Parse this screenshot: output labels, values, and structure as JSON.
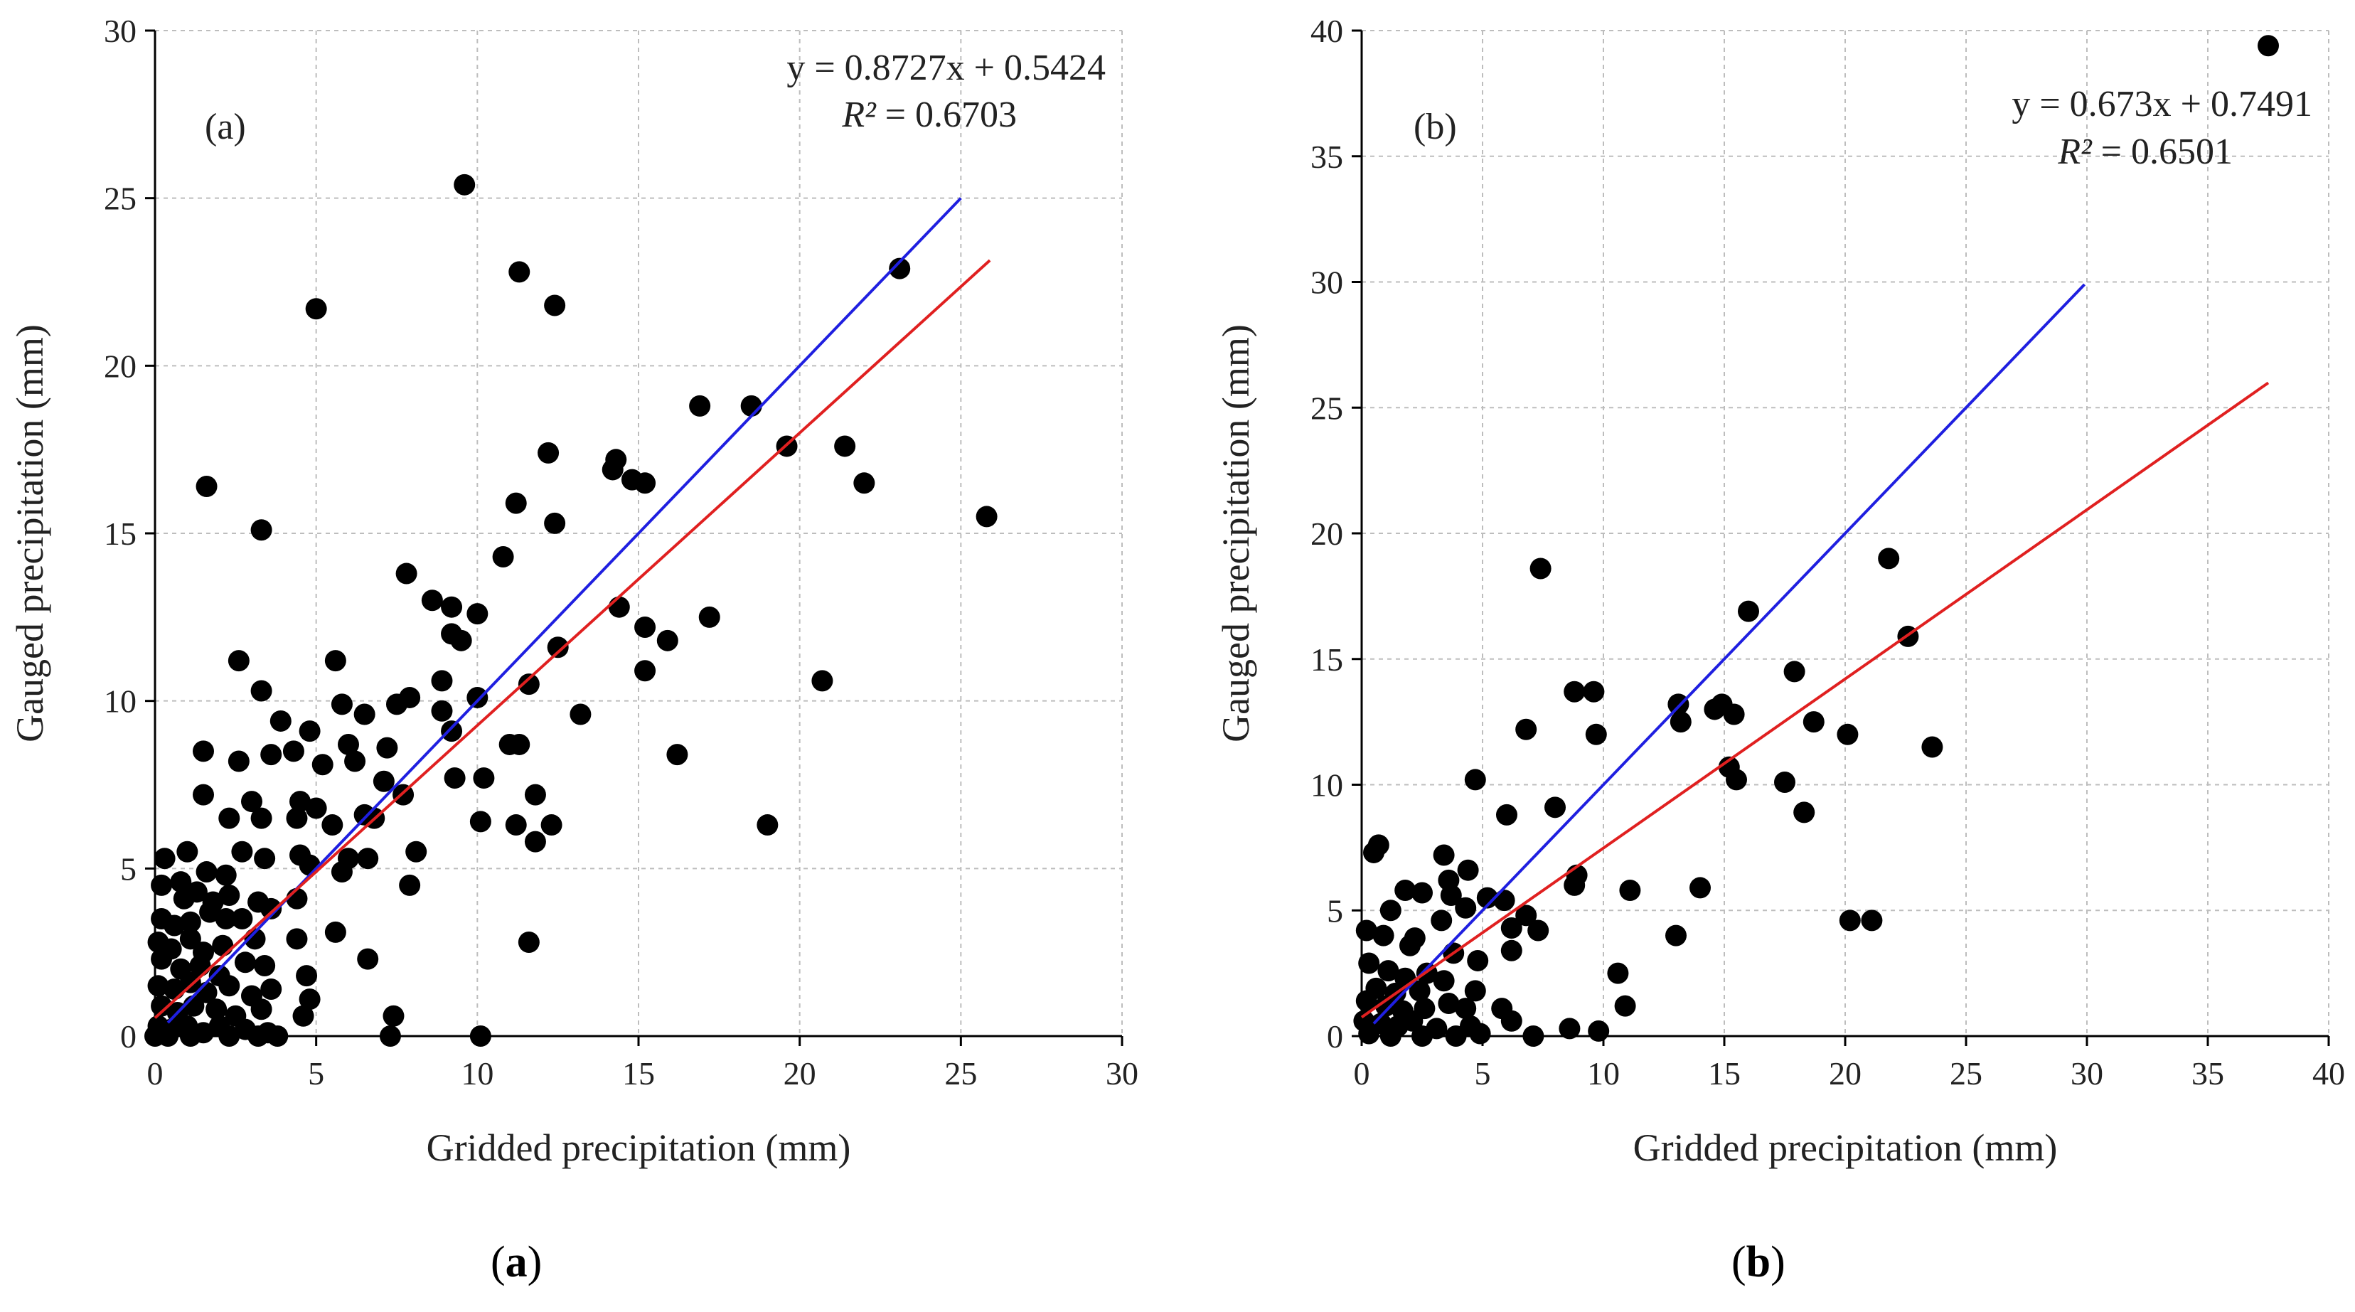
{
  "chart_data": [
    {
      "type": "scatter",
      "panel_label": "(a)",
      "caption": {
        "open": "(",
        "letter": "a",
        "close": ")"
      },
      "xlabel": "Gridded precipitation (mm)",
      "ylabel": "Gauged precipitation (mm)",
      "xlim": [
        0,
        30
      ],
      "ylim": [
        0,
        30
      ],
      "xticks": [
        0,
        5,
        10,
        15,
        20,
        25,
        30
      ],
      "yticks": [
        0,
        5,
        10,
        15,
        20,
        25,
        30
      ],
      "grid": true,
      "equation": "y = 0.8727x + 0.5424",
      "r2_label": "R²",
      "r2_value": "= 0.6703",
      "colors": {
        "one_to_one": "#1f1fe0",
        "regression": "#e02020",
        "points": "#000000"
      },
      "one_to_one_line": {
        "from": [
          0.4,
          0.4
        ],
        "to": [
          25,
          25
        ]
      },
      "regression": {
        "slope": 0.8727,
        "intercept": 0.5424,
        "x_range": [
          0,
          25.9
        ]
      },
      "points": [
        [
          9.6,
          25.4
        ],
        [
          11.3,
          22.8
        ],
        [
          5.0,
          21.7
        ],
        [
          12.4,
          21.8
        ],
        [
          23.1,
          22.9
        ],
        [
          1.6,
          16.4
        ],
        [
          3.3,
          15.1
        ],
        [
          16.9,
          18.8
        ],
        [
          18.5,
          18.8
        ],
        [
          19.6,
          17.6
        ],
        [
          21.4,
          17.6
        ],
        [
          22.0,
          16.5
        ],
        [
          25.8,
          15.5
        ],
        [
          12.2,
          17.4
        ],
        [
          14.3,
          17.2
        ],
        [
          14.2,
          16.9
        ],
        [
          14.8,
          16.6
        ],
        [
          15.2,
          16.5
        ],
        [
          11.2,
          15.9
        ],
        [
          12.4,
          15.3
        ],
        [
          10.8,
          14.3
        ],
        [
          7.8,
          13.8
        ],
        [
          8.6,
          13.0
        ],
        [
          9.2,
          12.8
        ],
        [
          10.0,
          12.6
        ],
        [
          14.4,
          12.8
        ],
        [
          17.2,
          12.5
        ],
        [
          15.2,
          12.2
        ],
        [
          15.9,
          11.8
        ],
        [
          9.2,
          12.0
        ],
        [
          9.5,
          11.8
        ],
        [
          12.5,
          11.6
        ],
        [
          2.6,
          11.2
        ],
        [
          5.6,
          11.2
        ],
        [
          8.9,
          10.6
        ],
        [
          10.0,
          10.1
        ],
        [
          11.6,
          10.5
        ],
        [
          13.2,
          9.6
        ],
        [
          15.2,
          10.9
        ],
        [
          20.7,
          10.6
        ],
        [
          3.3,
          10.3
        ],
        [
          5.8,
          9.9
        ],
        [
          7.5,
          9.9
        ],
        [
          7.9,
          10.1
        ],
        [
          8.9,
          9.7
        ],
        [
          6.5,
          9.6
        ],
        [
          3.9,
          9.4
        ],
        [
          4.8,
          9.1
        ],
        [
          9.2,
          9.1
        ],
        [
          6.0,
          8.7
        ],
        [
          7.2,
          8.6
        ],
        [
          11.0,
          8.7
        ],
        [
          11.3,
          8.7
        ],
        [
          16.2,
          8.4
        ],
        [
          1.5,
          8.5
        ],
        [
          2.6,
          8.2
        ],
        [
          3.6,
          8.4
        ],
        [
          4.3,
          8.5
        ],
        [
          5.2,
          8.1
        ],
        [
          6.2,
          8.2
        ],
        [
          7.1,
          7.6
        ],
        [
          9.3,
          7.7
        ],
        [
          10.2,
          7.7
        ],
        [
          1.5,
          7.2
        ],
        [
          3.0,
          7.0
        ],
        [
          4.5,
          7.0
        ],
        [
          5.0,
          6.8
        ],
        [
          6.5,
          6.6
        ],
        [
          7.7,
          7.2
        ],
        [
          11.8,
          7.2
        ],
        [
          2.3,
          6.5
        ],
        [
          3.3,
          6.5
        ],
        [
          4.4,
          6.5
        ],
        [
          5.5,
          6.3
        ],
        [
          6.8,
          6.5
        ],
        [
          10.1,
          6.4
        ],
        [
          11.2,
          6.3
        ],
        [
          12.3,
          6.3
        ],
        [
          19.0,
          6.3
        ],
        [
          1.0,
          5.5
        ],
        [
          2.7,
          5.5
        ],
        [
          3.4,
          5.3
        ],
        [
          4.5,
          5.4
        ],
        [
          6.0,
          5.3
        ],
        [
          8.1,
          5.5
        ],
        [
          11.8,
          5.8
        ],
        [
          0.3,
          5.3
        ],
        [
          0.8,
          4.6
        ],
        [
          1.6,
          4.9
        ],
        [
          2.2,
          4.8
        ],
        [
          4.8,
          5.1
        ],
        [
          5.8,
          4.9
        ],
        [
          6.6,
          5.3
        ],
        [
          7.9,
          4.5
        ],
        [
          0.2,
          4.5
        ],
        [
          0.9,
          4.1
        ],
        [
          1.3,
          4.3
        ],
        [
          1.8,
          4.0
        ],
        [
          2.3,
          4.2
        ],
        [
          3.2,
          4.0
        ],
        [
          4.4,
          4.1
        ],
        [
          0.2,
          3.5
        ],
        [
          0.6,
          3.3
        ],
        [
          1.1,
          3.4
        ],
        [
          1.7,
          3.7
        ],
        [
          2.2,
          3.5
        ],
        [
          2.7,
          3.5
        ],
        [
          3.6,
          3.8
        ],
        [
          5.6,
          3.1
        ],
        [
          0.1,
          2.8
        ],
        [
          0.5,
          2.6
        ],
        [
          1.1,
          2.9
        ],
        [
          1.5,
          2.5
        ],
        [
          2.1,
          2.7
        ],
        [
          3.1,
          2.9
        ],
        [
          4.4,
          2.9
        ],
        [
          11.6,
          2.8
        ],
        [
          0.2,
          2.3
        ],
        [
          0.8,
          2.0
        ],
        [
          1.4,
          2.1
        ],
        [
          2.0,
          1.8
        ],
        [
          2.8,
          2.2
        ],
        [
          3.4,
          2.1
        ],
        [
          4.7,
          1.8
        ],
        [
          6.6,
          2.3
        ],
        [
          0.1,
          1.5
        ],
        [
          0.6,
          1.4
        ],
        [
          1.1,
          1.6
        ],
        [
          1.6,
          1.3
        ],
        [
          2.3,
          1.5
        ],
        [
          3.0,
          1.2
        ],
        [
          3.6,
          1.4
        ],
        [
          4.8,
          1.1
        ],
        [
          0.2,
          0.9
        ],
        [
          0.7,
          0.7
        ],
        [
          1.2,
          0.9
        ],
        [
          1.9,
          0.8
        ],
        [
          2.5,
          0.6
        ],
        [
          3.3,
          0.8
        ],
        [
          4.6,
          0.6
        ],
        [
          7.4,
          0.6
        ],
        [
          0.1,
          0.3
        ],
        [
          0.5,
          0.2
        ],
        [
          1.0,
          0.3
        ],
        [
          1.5,
          0.1
        ],
        [
          2.0,
          0.3
        ],
        [
          2.8,
          0.2
        ],
        [
          3.5,
          0.1
        ],
        [
          3.8,
          0.0
        ],
        [
          0.0,
          0.0
        ],
        [
          0.4,
          0.0
        ],
        [
          1.1,
          0.0
        ],
        [
          2.3,
          0.0
        ],
        [
          3.2,
          0.0
        ],
        [
          7.3,
          0.0
        ],
        [
          10.1,
          0.0
        ]
      ]
    },
    {
      "type": "scatter",
      "panel_label": "(b)",
      "caption": {
        "open": "(",
        "letter": "b",
        "close": ")"
      },
      "xlabel": "Gridded precipitation (mm)",
      "ylabel": "Gauged precipitation (mm)",
      "xlim": [
        0,
        40
      ],
      "ylim": [
        0,
        40
      ],
      "xticks": [
        0,
        5,
        10,
        15,
        20,
        25,
        30,
        35,
        40
      ],
      "yticks": [
        0,
        5,
        10,
        15,
        20,
        25,
        30,
        35,
        40
      ],
      "grid": true,
      "equation": "y = 0.673x + 0.7491",
      "r2_label": "R²",
      "r2_value": "= 0.6501",
      "colors": {
        "one_to_one": "#1f1fe0",
        "regression": "#e02020",
        "points": "#000000"
      },
      "one_to_one_line": {
        "from": [
          0.5,
          0.5
        ],
        "to": [
          29.9,
          29.9
        ]
      },
      "regression": {
        "slope": 0.673,
        "intercept": 0.7491,
        "x_range": [
          0,
          37.5
        ]
      },
      "points": [
        [
          37.5,
          39.4
        ],
        [
          7.4,
          18.6
        ],
        [
          21.8,
          19.0
        ],
        [
          16.0,
          16.9
        ],
        [
          22.6,
          15.9
        ],
        [
          17.9,
          14.5
        ],
        [
          8.8,
          13.7
        ],
        [
          9.6,
          13.7
        ],
        [
          13.1,
          13.2
        ],
        [
          14.6,
          13.0
        ],
        [
          14.9,
          13.2
        ],
        [
          13.2,
          12.5
        ],
        [
          15.4,
          12.8
        ],
        [
          6.8,
          12.2
        ],
        [
          9.7,
          12.0
        ],
        [
          18.7,
          12.5
        ],
        [
          20.1,
          12.0
        ],
        [
          23.6,
          11.5
        ],
        [
          15.2,
          10.7
        ],
        [
          15.5,
          10.2
        ],
        [
          17.5,
          10.1
        ],
        [
          4.7,
          10.2
        ],
        [
          18.3,
          8.9
        ],
        [
          8.0,
          9.1
        ],
        [
          6.0,
          8.8
        ],
        [
          0.7,
          7.6
        ],
        [
          0.5,
          7.3
        ],
        [
          3.4,
          7.2
        ],
        [
          4.4,
          6.6
        ],
        [
          3.6,
          6.2
        ],
        [
          8.9,
          6.4
        ],
        [
          8.8,
          6.0
        ],
        [
          11.1,
          5.8
        ],
        [
          14.0,
          5.9
        ],
        [
          1.8,
          5.8
        ],
        [
          2.5,
          5.7
        ],
        [
          3.7,
          5.6
        ],
        [
          5.2,
          5.5
        ],
        [
          5.9,
          5.4
        ],
        [
          4.3,
          5.1
        ],
        [
          1.2,
          5.0
        ],
        [
          3.3,
          4.6
        ],
        [
          6.8,
          4.8
        ],
        [
          7.3,
          4.2
        ],
        [
          6.2,
          4.3
        ],
        [
          0.2,
          4.2
        ],
        [
          0.9,
          4.0
        ],
        [
          2.2,
          3.9
        ],
        [
          13.0,
          4.0
        ],
        [
          20.2,
          4.6
        ],
        [
          21.1,
          4.6
        ],
        [
          2.0,
          3.6
        ],
        [
          3.8,
          3.3
        ],
        [
          4.8,
          3.0
        ],
        [
          6.2,
          3.4
        ],
        [
          10.6,
          2.5
        ],
        [
          0.3,
          2.9
        ],
        [
          1.1,
          2.6
        ],
        [
          1.8,
          2.3
        ],
        [
          2.7,
          2.5
        ],
        [
          3.4,
          2.2
        ],
        [
          0.6,
          1.9
        ],
        [
          1.4,
          1.7
        ],
        [
          2.4,
          1.8
        ],
        [
          4.7,
          1.8
        ],
        [
          0.2,
          1.4
        ],
        [
          1.0,
          1.2
        ],
        [
          1.7,
          1.0
        ],
        [
          2.6,
          1.1
        ],
        [
          3.6,
          1.3
        ],
        [
          4.3,
          1.1
        ],
        [
          5.8,
          1.1
        ],
        [
          10.9,
          1.2
        ],
        [
          0.1,
          0.6
        ],
        [
          0.8,
          0.5
        ],
        [
          1.5,
          0.4
        ],
        [
          2.1,
          0.6
        ],
        [
          3.1,
          0.3
        ],
        [
          4.5,
          0.4
        ],
        [
          6.2,
          0.6
        ],
        [
          0.3,
          0.1
        ],
        [
          1.2,
          0.0
        ],
        [
          2.5,
          0.0
        ],
        [
          3.9,
          0.0
        ],
        [
          4.9,
          0.1
        ],
        [
          7.1,
          0.0
        ],
        [
          8.6,
          0.3
        ],
        [
          9.8,
          0.2
        ]
      ]
    }
  ]
}
